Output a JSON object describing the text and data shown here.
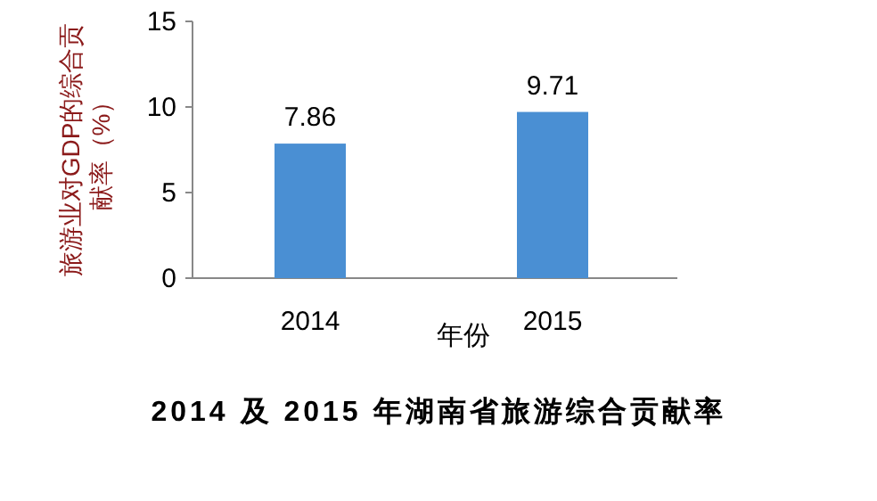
{
  "chart_data": {
    "type": "bar",
    "title": "2014 及 2015 年湖南省旅游综合贡献率",
    "xlabel": "年份",
    "ylabel": "旅游业对GDP的综合贡献率（%）",
    "categories": [
      "2014",
      "2015"
    ],
    "values": [
      7.86,
      9.71
    ],
    "color": "#4a8fd3",
    "ylim": [
      0,
      15
    ],
    "yticks": [
      0,
      5,
      10,
      15
    ],
    "data_labels": true
  }
}
